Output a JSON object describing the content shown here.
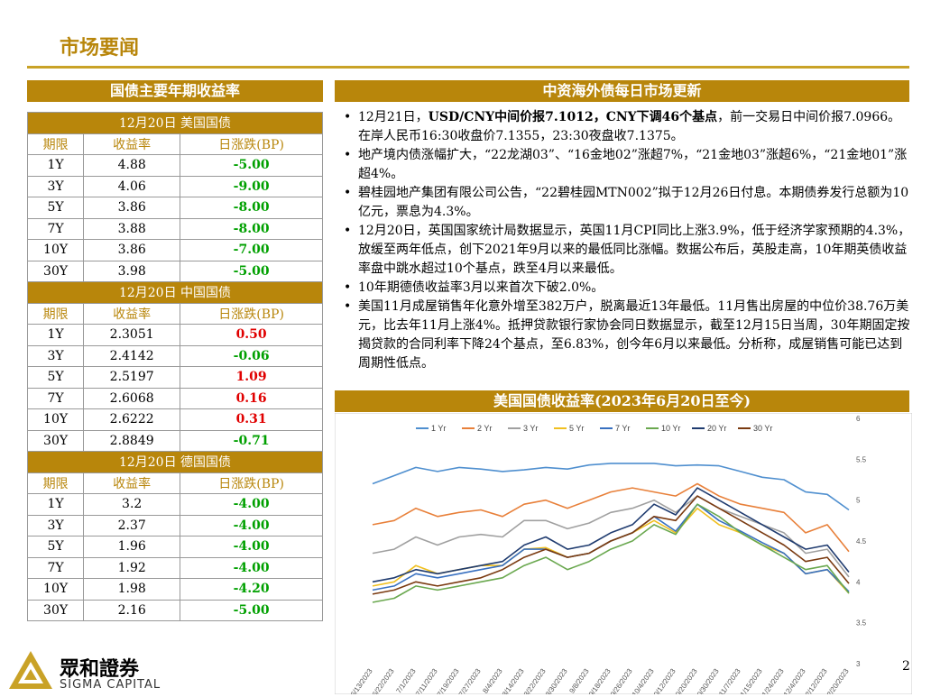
{
  "header": {
    "title": "市场要闻"
  },
  "left": {
    "heading": "国债主要年期收益率",
    "columns": {
      "tenor": "期限",
      "yield": "收益率",
      "change": "日涨跌(BP)"
    },
    "groups": [
      {
        "label": "12月20日  美国国债",
        "rows": [
          {
            "tenor": "1Y",
            "yield": "4.88",
            "change": "-5.00",
            "dir": "down"
          },
          {
            "tenor": "3Y",
            "yield": "4.06",
            "change": "-9.00",
            "dir": "down"
          },
          {
            "tenor": "5Y",
            "yield": "3.86",
            "change": "-8.00",
            "dir": "down"
          },
          {
            "tenor": "7Y",
            "yield": "3.88",
            "change": "-8.00",
            "dir": "down"
          },
          {
            "tenor": "10Y",
            "yield": "3.86",
            "change": "-7.00",
            "dir": "down"
          },
          {
            "tenor": "30Y",
            "yield": "3.98",
            "change": "-5.00",
            "dir": "down"
          }
        ]
      },
      {
        "label": "12月20日  中国国债",
        "rows": [
          {
            "tenor": "1Y",
            "yield": "2.3051",
            "change": "0.50",
            "dir": "up"
          },
          {
            "tenor": "3Y",
            "yield": "2.4142",
            "change": "-0.06",
            "dir": "down"
          },
          {
            "tenor": "5Y",
            "yield": "2.5197",
            "change": "1.09",
            "dir": "up"
          },
          {
            "tenor": "7Y",
            "yield": "2.6068",
            "change": "0.16",
            "dir": "up"
          },
          {
            "tenor": "10Y",
            "yield": "2.6222",
            "change": "0.31",
            "dir": "up"
          },
          {
            "tenor": "30Y",
            "yield": "2.8849",
            "change": "-0.71",
            "dir": "down"
          }
        ]
      },
      {
        "label": "12月20日  德国国债",
        "rows": [
          {
            "tenor": "1Y",
            "yield": "3.2",
            "change": "-4.00",
            "dir": "down"
          },
          {
            "tenor": "3Y",
            "yield": "2.37",
            "change": "-4.00",
            "dir": "down"
          },
          {
            "tenor": "5Y",
            "yield": "1.96",
            "change": "-4.00",
            "dir": "down"
          },
          {
            "tenor": "7Y",
            "yield": "1.92",
            "change": "-4.00",
            "dir": "down"
          },
          {
            "tenor": "10Y",
            "yield": "1.98",
            "change": "-4.20",
            "dir": "down"
          },
          {
            "tenor": "30Y",
            "yield": "2.16",
            "change": "-5.00",
            "dir": "down"
          }
        ]
      }
    ]
  },
  "right": {
    "heading": "中资海外债每日市场更新",
    "news": [
      {
        "pre": "12月21日，",
        "bold": "USD/CNY中间价报7.1012，CNY下调46个基点",
        "post": "，前一交易日中间价报7.0966。在岸人民币16:30收盘价7.1355，23:30夜盘收7.1375。"
      },
      {
        "pre": "地产境内债涨幅扩大，“22龙湖03”、“16金地02”涨超7%，“21金地03”涨超6%，“21金地01”涨超4%。",
        "bold": "",
        "post": ""
      },
      {
        "pre": "碧桂园地产集团有限公司公告，“22碧桂园MTN002”拟于12月26日付息。本期债券发行总额为10亿元，票息为4.3%。",
        "bold": "",
        "post": ""
      },
      {
        "pre": "12月20日，英国国家统计局数据显示，英国11月CPI同比上涨3.9%，低于经济学家预期的4.3%，放缓至两年低点，创下2021年9月以来的最低同比涨幅。数据公布后，英股走高，10年期英债收益率盘中跳水超过10个基点，跌至4月以来最低。",
        "bold": "",
        "post": ""
      },
      {
        "pre": "10年期德债收益率3月以来首次下破2.0%。",
        "bold": "",
        "post": ""
      },
      {
        "pre": "美国11月成屋销售年化意外增至382万户，脱离最近13年最低。11月售出房屋的中位价38.76万美元，比去年11月上涨4%。抵押贷款银行家协会同日数据显示，截至12月15日当周，30年期固定按揭贷款的合同利率下降24个基点，至6.83%，创今年6月以来最低。分析称，成屋销售可能已达到周期性低点。",
        "bold": "",
        "post": ""
      }
    ],
    "chart_heading": "美国国债收益率(2023年6月20日至今)"
  },
  "chart_data": {
    "type": "line",
    "title": "美国国债收益率(2023年6月20日至今)",
    "y_right_ticks": [
      "6",
      "5.5",
      "5",
      "4.5",
      "4",
      "3.5",
      "3"
    ],
    "ylim": [
      3,
      6
    ],
    "x_ticks": [
      "6/13/2023",
      "6/22/2023",
      "7/1/2023",
      "7/11/2023",
      "7/19/2023",
      "7/27/2023",
      "8/4/2023",
      "8/14/2023",
      "8/22/2023",
      "8/30/2023",
      "9/8/2023",
      "9/18/2023",
      "9/26/2023",
      "10/4/2023",
      "10/12/2023",
      "10/20/2023",
      "10/30/2023",
      "11/7/2023",
      "11/15/2023",
      "11/24/2023",
      "12/4/2023",
      "12/12/2023",
      "12/20/2023"
    ],
    "legend": [
      "1 Yr",
      "2 Yr",
      "3 Yr",
      "5 Yr",
      "7 Yr",
      "10 Yr",
      "20 Yr",
      "30 Yr"
    ],
    "series": [
      {
        "name": "1 Yr",
        "color": "#4f8fcf",
        "values": [
          5.2,
          5.3,
          5.4,
          5.35,
          5.4,
          5.38,
          5.35,
          5.37,
          5.4,
          5.38,
          5.43,
          5.45,
          5.45,
          5.45,
          5.42,
          5.43,
          5.42,
          5.35,
          5.28,
          5.25,
          5.1,
          5.07,
          4.88
        ]
      },
      {
        "name": "2 Yr",
        "color": "#e8803a",
        "values": [
          4.7,
          4.75,
          4.9,
          4.8,
          4.85,
          4.88,
          4.8,
          4.95,
          5.0,
          4.9,
          5.0,
          5.1,
          5.15,
          5.1,
          5.05,
          5.2,
          5.05,
          4.95,
          4.9,
          4.85,
          4.6,
          4.7,
          4.37
        ]
      },
      {
        "name": "3 Yr",
        "color": "#a0a0a0",
        "values": [
          4.35,
          4.4,
          4.55,
          4.45,
          4.55,
          4.58,
          4.55,
          4.75,
          4.75,
          4.65,
          4.72,
          4.85,
          4.9,
          5.0,
          4.85,
          5.05,
          4.9,
          4.8,
          4.7,
          4.6,
          4.35,
          4.4,
          4.06
        ]
      },
      {
        "name": "5 Yr",
        "color": "#f0c020",
        "values": [
          3.95,
          4.0,
          4.2,
          4.1,
          4.15,
          4.2,
          4.2,
          4.4,
          4.42,
          4.3,
          4.35,
          4.5,
          4.6,
          4.75,
          4.6,
          4.9,
          4.7,
          4.6,
          4.45,
          4.35,
          4.1,
          4.15,
          3.86
        ]
      },
      {
        "name": "7 Yr",
        "color": "#3870c0",
        "values": [
          3.9,
          3.95,
          4.1,
          4.05,
          4.1,
          4.15,
          4.2,
          4.4,
          4.4,
          4.3,
          4.35,
          4.5,
          4.6,
          4.8,
          4.62,
          4.95,
          4.75,
          4.62,
          4.48,
          4.35,
          4.1,
          4.15,
          3.88
        ]
      },
      {
        "name": "10 Yr",
        "color": "#6aa84f",
        "values": [
          3.75,
          3.8,
          3.95,
          3.9,
          3.95,
          4.0,
          4.05,
          4.2,
          4.3,
          4.15,
          4.25,
          4.4,
          4.5,
          4.7,
          4.58,
          4.95,
          4.8,
          4.6,
          4.45,
          4.3,
          4.15,
          4.2,
          3.86
        ]
      },
      {
        "name": "20 Yr",
        "color": "#1f3b6f",
        "values": [
          4.0,
          4.05,
          4.15,
          4.1,
          4.15,
          4.2,
          4.25,
          4.45,
          4.55,
          4.4,
          4.45,
          4.6,
          4.7,
          4.95,
          4.82,
          5.15,
          5.0,
          4.85,
          4.7,
          4.55,
          4.4,
          4.45,
          4.12
        ]
      },
      {
        "name": "30 Yr",
        "color": "#7a3a10",
        "values": [
          3.85,
          3.9,
          4.0,
          3.95,
          4.0,
          4.05,
          4.15,
          4.3,
          4.4,
          4.3,
          4.35,
          4.5,
          4.6,
          4.8,
          4.75,
          5.05,
          4.9,
          4.75,
          4.6,
          4.45,
          4.25,
          4.3,
          3.98
        ]
      }
    ]
  },
  "footer": {
    "brand_cn": "眾和證券",
    "brand_en": "SIGMA CAPITAL",
    "page": "2"
  }
}
